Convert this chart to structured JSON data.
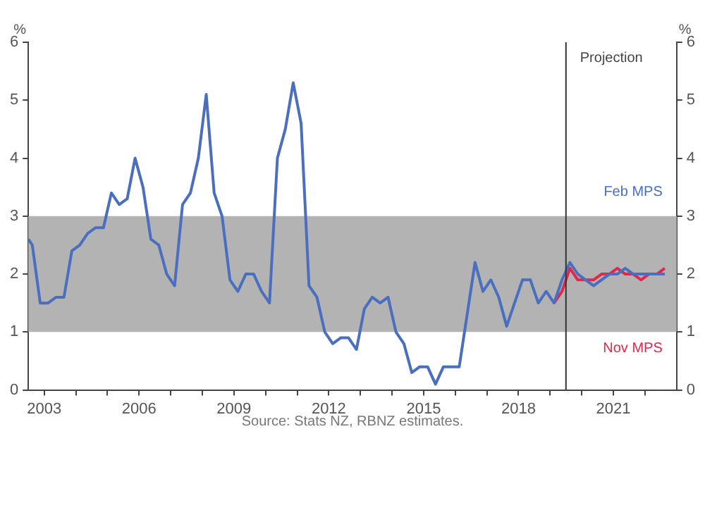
{
  "chart_data": {
    "type": "line",
    "ylabel": "%",
    "y2label": "%",
    "xlim": [
      2003,
      2023.5
    ],
    "xticks": [
      {
        "value": 2003.5,
        "label": "2003"
      },
      {
        "value": 2004.5,
        "label": null
      },
      {
        "value": 2005.5,
        "label": null
      },
      {
        "value": 2006.5,
        "label": "2006"
      },
      {
        "value": 2007.5,
        "label": null
      },
      {
        "value": 2008.5,
        "label": null
      },
      {
        "value": 2009.5,
        "label": "2009"
      },
      {
        "value": 2010.5,
        "label": null
      },
      {
        "value": 2011.5,
        "label": null
      },
      {
        "value": 2012.5,
        "label": "2012"
      },
      {
        "value": 2013.5,
        "label": null
      },
      {
        "value": 2014.5,
        "label": null
      },
      {
        "value": 2015.5,
        "label": "2015"
      },
      {
        "value": 2016.5,
        "label": null
      },
      {
        "value": 2017.5,
        "label": null
      },
      {
        "value": 2018.5,
        "label": "2018"
      },
      {
        "value": 2019.5,
        "label": null
      },
      {
        "value": 2020.5,
        "label": null
      },
      {
        "value": 2021.5,
        "label": "2021"
      },
      {
        "value": 2022.5,
        "label": null
      }
    ],
    "ylim": [
      0,
      6
    ],
    "yticks": [
      0,
      1,
      2,
      3,
      4,
      5,
      6
    ],
    "y2lim": [
      0,
      6
    ],
    "y2ticks": [
      0,
      1,
      2,
      3,
      4,
      5,
      6
    ],
    "grid": false,
    "legend": false,
    "marker": "none",
    "line_style": "solid",
    "series": [
      {
        "name": "Feb MPS",
        "color": "#4a6fbf",
        "x": [
          2003.0,
          2003.125,
          2003.375,
          2003.625,
          2003.875,
          2004.125,
          2004.375,
          2004.625,
          2004.875,
          2005.125,
          2005.375,
          2005.625,
          2005.875,
          2006.125,
          2006.375,
          2006.625,
          2006.875,
          2007.125,
          2007.375,
          2007.625,
          2007.875,
          2008.125,
          2008.375,
          2008.625,
          2008.875,
          2009.125,
          2009.375,
          2009.625,
          2009.875,
          2010.125,
          2010.375,
          2010.625,
          2010.875,
          2011.125,
          2011.375,
          2011.625,
          2011.875,
          2012.125,
          2012.375,
          2012.625,
          2012.875,
          2013.125,
          2013.375,
          2013.625,
          2013.875,
          2014.125,
          2014.375,
          2014.625,
          2014.875,
          2015.125,
          2015.375,
          2015.625,
          2015.875,
          2016.125,
          2016.375,
          2016.625,
          2016.875,
          2017.125,
          2017.375,
          2017.625,
          2017.875,
          2018.125,
          2018.375,
          2018.625,
          2018.875,
          2019.125,
          2019.375,
          2019.625,
          2019.875,
          2020.125,
          2020.375,
          2020.625,
          2020.875,
          2021.125,
          2021.375,
          2021.625,
          2021.875,
          2022.125,
          2022.375,
          2022.625,
          2022.875,
          2023.125
        ],
        "values": [
          2.6,
          2.5,
          1.5,
          1.5,
          1.6,
          1.6,
          2.4,
          2.5,
          2.7,
          2.8,
          2.8,
          3.4,
          3.2,
          3.3,
          4.0,
          3.5,
          2.6,
          2.5,
          2.0,
          1.8,
          3.2,
          3.4,
          4.0,
          5.1,
          3.4,
          3.0,
          1.9,
          1.7,
          2.0,
          2.0,
          1.7,
          1.5,
          4.0,
          4.5,
          5.3,
          4.6,
          1.8,
          1.6,
          1.0,
          0.8,
          0.9,
          0.9,
          0.7,
          1.4,
          1.6,
          1.5,
          1.6,
          1.0,
          0.8,
          0.3,
          0.4,
          0.4,
          0.1,
          0.4,
          0.4,
          0.4,
          1.3,
          2.2,
          1.7,
          1.9,
          1.6,
          1.1,
          1.5,
          1.9,
          1.9,
          1.5,
          1.7,
          1.5,
          1.9,
          2.2,
          2.0,
          1.9,
          1.8,
          1.9,
          2.0,
          2.0,
          2.1,
          2.0,
          2.0,
          2.0,
          2.0,
          2.0
        ]
      },
      {
        "name": "Nov MPS",
        "color": "#e0284b",
        "x": [
          2019.625,
          2019.875,
          2020.125,
          2020.375,
          2020.625,
          2020.875,
          2021.125,
          2021.375,
          2021.625,
          2021.875,
          2022.125,
          2022.375,
          2022.625,
          2022.875,
          2023.125
        ],
        "values": [
          1.5,
          1.7,
          2.1,
          1.9,
          1.9,
          1.9,
          2.0,
          2.0,
          2.1,
          2.0,
          2.0,
          1.9,
          2.0,
          2.0,
          2.1
        ]
      }
    ],
    "bands": [
      {
        "axis": "y",
        "from": 1,
        "to": 3,
        "color": "#b3b3b3"
      }
    ],
    "ref_lines": [
      {
        "axis": "x",
        "value": 2020,
        "label": "Projection",
        "color": "#333333"
      }
    ],
    "annotations": [
      "Source: Stats NZ, RBNZ estimates."
    ]
  }
}
